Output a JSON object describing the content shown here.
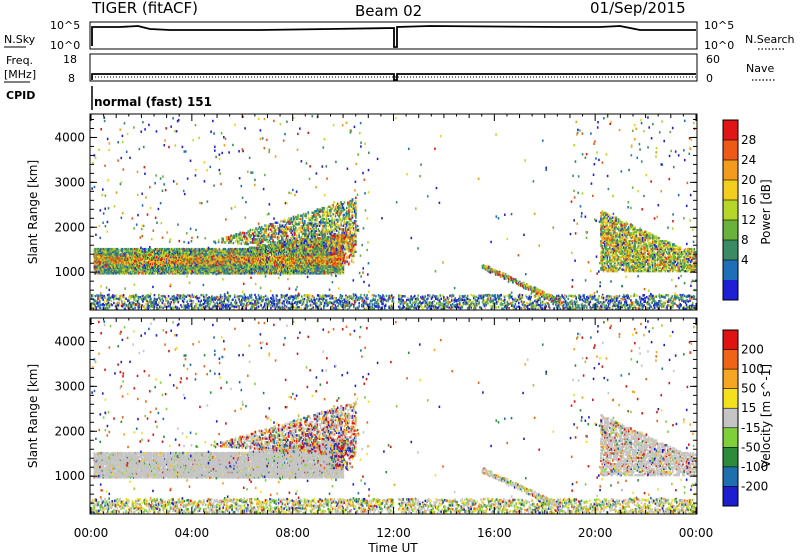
{
  "header": {
    "station": "TIGER (fitACF)",
    "beam": "Beam 02",
    "date": "01/Sep/2015"
  },
  "top_panels": {
    "nsky_label": "N.Sky",
    "nsearch_label": "N.Search",
    "nsky_ticks": [
      "10^5",
      "10^0"
    ],
    "freq_label": "Freq.",
    "freq_unit": "[MHz]",
    "freq_ticks": [
      "18",
      "8"
    ],
    "nave_label": "Nave",
    "nave_ticks": [
      "60",
      "0"
    ],
    "cpid_label": "CPID",
    "cpid_text": "normal (fast) 151"
  },
  "colors": {
    "power": [
      "#1f1fd6",
      "#1e6fb8",
      "#3a8a64",
      "#69b33c",
      "#b7d62a",
      "#f2cf1f",
      "#f39b1c",
      "#ee5a16",
      "#e11515"
    ],
    "velocity": [
      "#1d1ecf",
      "#1e6fae",
      "#2f8b3c",
      "#7fcf3a",
      "#c5c5c5",
      "#f4e11e",
      "#f5a623",
      "#f06418",
      "#e01313"
    ]
  },
  "chart_data": [
    {
      "type": "heatmap",
      "title": "Power",
      "xlabel": "Time UT",
      "ylabel": "Slant Range [km]",
      "x_ticks": [
        "00:00",
        "04:00",
        "08:00",
        "12:00",
        "16:00",
        "20:00",
        "00:00"
      ],
      "xlim_hours": [
        0,
        24
      ],
      "ylim": [
        180,
        4500
      ],
      "y_ticks": [
        1000,
        2000,
        3000,
        4000
      ],
      "colorbar_label": "Power [dB]",
      "colorbar_ticks": [
        "28",
        "24",
        "20",
        "16",
        "12",
        "8",
        "4"
      ],
      "colorbar_range": [
        0,
        30
      ]
    },
    {
      "type": "heatmap",
      "title": "Velocity",
      "xlabel": "Time UT",
      "ylabel": "Slant Range [km]",
      "x_ticks": [
        "00:00",
        "04:00",
        "08:00",
        "12:00",
        "16:00",
        "20:00",
        "00:00"
      ],
      "xlim_hours": [
        0,
        24
      ],
      "ylim": [
        180,
        4500
      ],
      "y_ticks": [
        1000,
        2000,
        3000,
        4000
      ],
      "colorbar_label": "Velocity [m s^-1]",
      "colorbar_ticks": [
        "200",
        "100",
        "50",
        "15",
        "-15",
        "-50",
        "-100",
        "-200"
      ],
      "colorbar_range": [
        -250,
        250
      ]
    }
  ]
}
